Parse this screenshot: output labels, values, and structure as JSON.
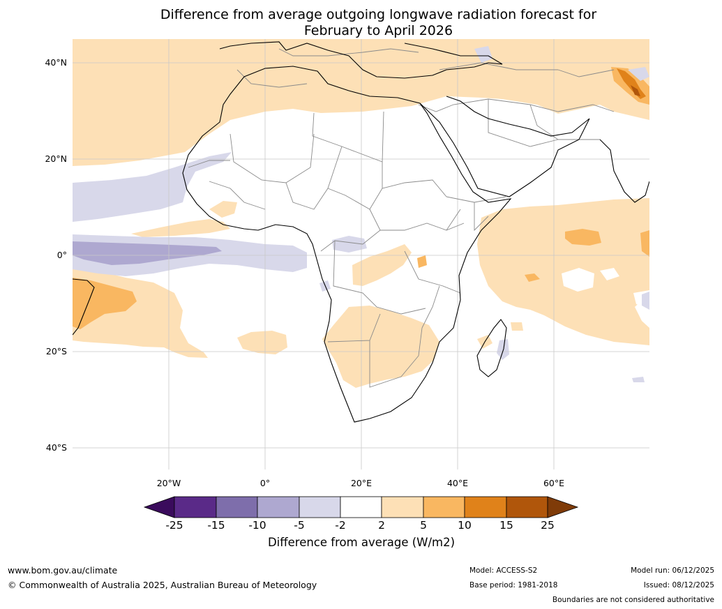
{
  "title": {
    "line1": "Difference from average outgoing longwave radiation forecast for",
    "line2": "February to April 2026"
  },
  "axes": {
    "lat_labels": [
      "40°N",
      "20°N",
      "0°",
      "20°S",
      "40°S"
    ],
    "lon_labels": [
      "20°W",
      "0°",
      "20°E",
      "40°E",
      "60°E"
    ]
  },
  "colorbar": {
    "ticks": [
      "-25",
      "-15",
      "-10",
      "-5",
      "-2",
      "2",
      "5",
      "10",
      "15",
      "25"
    ],
    "title": "Difference from average (W/m2)",
    "colors": {
      "below_min": "#3a0b5c",
      "m25_m15": "#5a2a88",
      "m15_m10": "#7e6eab",
      "m10_m5": "#aea8d0",
      "m5_m2": "#d8d8ea",
      "m2_p2": "#ffffff",
      "p2_p5": "#fde0b6",
      "p5_p10": "#f9b761",
      "p10_p15": "#e0821a",
      "p15_p25": "#b0560b",
      "above_max": "#7f3b08"
    }
  },
  "footer": {
    "website": "www.bom.gov.au/climate",
    "copyright": "© Commonwealth of Australia 2025, Australian Bureau of Meteorology",
    "model": "Model: ACCESS-S2",
    "base_period": "Base period: 1981-2018",
    "model_run": "Model run: 06/12/2025",
    "issued": "Issued: 08/12/2025",
    "disclaimer": "Boundaries are not considered authoritative"
  }
}
